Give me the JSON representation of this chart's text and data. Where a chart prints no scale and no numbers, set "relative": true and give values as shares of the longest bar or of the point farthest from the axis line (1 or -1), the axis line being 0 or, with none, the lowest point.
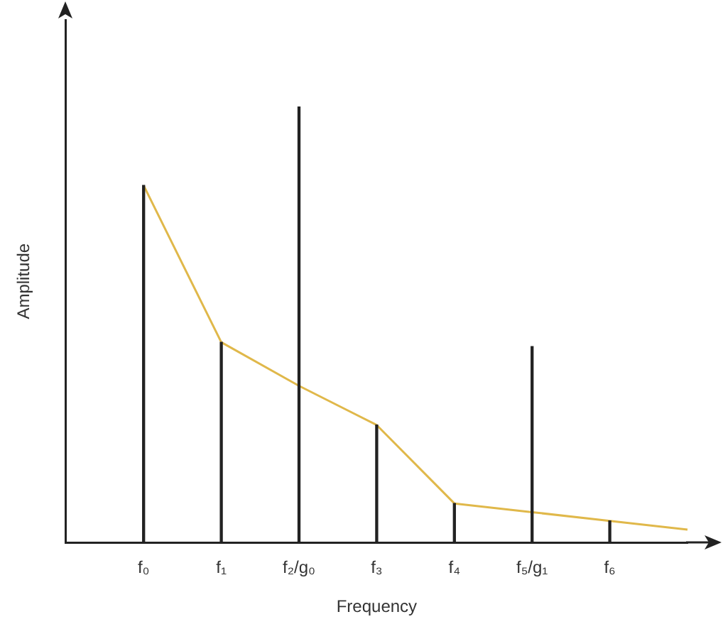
{
  "chart_data": {
    "type": "bar",
    "relative": true,
    "xlabel": "Frequency",
    "ylabel": "Amplitude",
    "categories": [
      null,
      "f₀",
      "f₁",
      "f₂/g₀",
      "f₃",
      "f₄",
      "f₅/g₁",
      "f₆",
      null
    ],
    "series": [
      {
        "color": "#222222",
        "values": [
          null,
          0.82,
          0.46,
          1,
          0.27,
          0.09,
          0.45,
          0.05,
          null
        ]
      },
      {
        "type": "line",
        "color": "#e0b84a",
        "values": [
          null,
          0.82,
          0.46,
          0.36,
          0.27,
          0.09,
          0.07,
          0.05,
          0.03
        ]
      }
    ],
    "legend": false,
    "grid": false,
    "marker": "none"
  }
}
